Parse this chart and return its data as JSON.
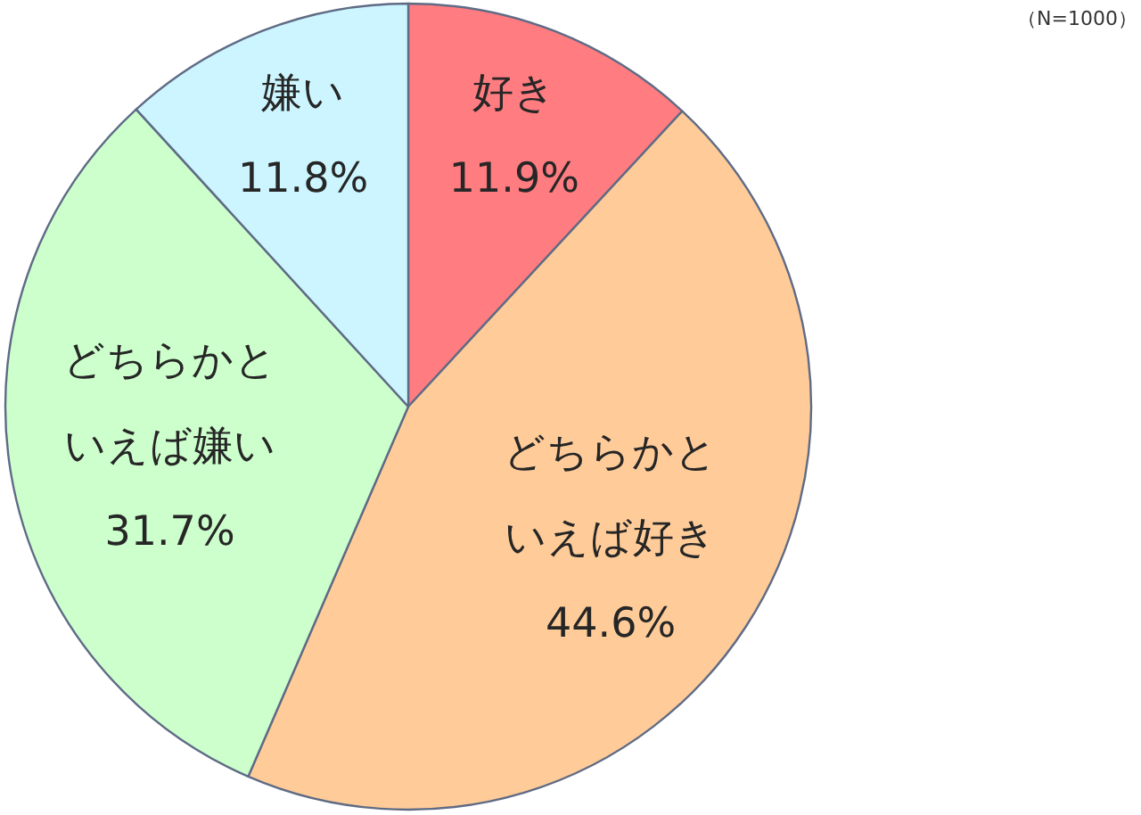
{
  "chart_data": {
    "type": "pie",
    "categories": [
      "好き",
      "どちらかといえば好き",
      "どちらかといえば嫌い",
      "嫌い"
    ],
    "values": [
      11.9,
      44.6,
      31.7,
      11.8
    ],
    "value_labels": [
      "11.9%",
      "44.6%",
      "31.7%",
      "11.8%"
    ],
    "colors": [
      "#ff7c80",
      "#ffcc99",
      "#ccffcc",
      "#ccf5ff"
    ],
    "annotations": [
      "（N=1000）"
    ]
  }
}
